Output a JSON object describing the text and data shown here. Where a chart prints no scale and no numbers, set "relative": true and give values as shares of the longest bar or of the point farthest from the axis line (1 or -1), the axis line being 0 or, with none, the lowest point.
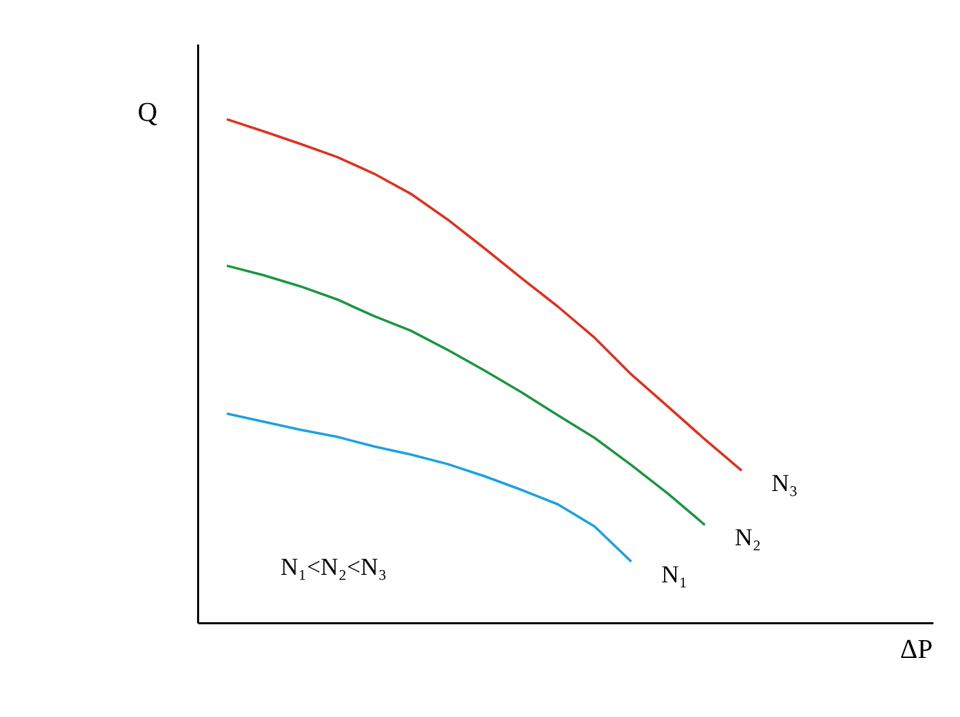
{
  "chart_data": {
    "type": "line",
    "relative": true,
    "ylabel": "Q",
    "ylim": [
      0,
      1.15
    ],
    "legend": false,
    "marker": "none",
    "line_style": "solid",
    "annotations": [
      "N₁<N₂<N₃",
      "ΔP"
    ],
    "categories": [
      null,
      null,
      null,
      null,
      null,
      null,
      null,
      null,
      null,
      null,
      null,
      null,
      null,
      null,
      null
    ],
    "series": [
      {
        "name": "N₃",
        "color": "#e0301e",
        "values": [
          1,
          0.976,
          0.951,
          0.925,
          0.892,
          0.852,
          0.801,
          0.744,
          0.685,
          0.628,
          0.566,
          0.493,
          0.429,
          0.364,
          0.302
        ]
      },
      {
        "name": "N₂",
        "color": "#1a9641",
        "values": [
          0.709,
          0.69,
          0.668,
          0.642,
          0.609,
          0.58,
          0.542,
          0.501,
          0.458,
          0.412,
          0.367,
          0.313,
          0.256,
          0.194,
          null
        ]
      },
      {
        "name": "N₁",
        "color": "#1ba1e2",
        "values": [
          0.415,
          0.399,
          0.383,
          0.369,
          0.35,
          0.334,
          0.315,
          0.291,
          0.264,
          0.235,
          0.191,
          0.121,
          null,
          null,
          null
        ]
      }
    ]
  }
}
